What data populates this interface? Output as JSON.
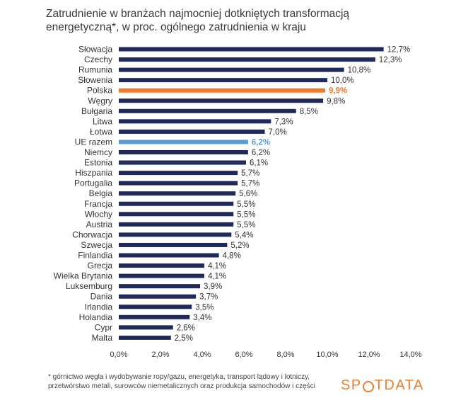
{
  "title": {
    "line1": "Zatrudnienie w branżach najmocniej dotkniętych transformacją",
    "line2": "energetyczną*, w proc. ogólnego zatrudnienia w kraju"
  },
  "footnote": {
    "line1": "* górnictwo węgla i wydobywanie ropy/gazu, energetyka, transport lądowy i lotniczy,",
    "line2": "przetwórstwo metali, surowców niemetalicznych oraz produkcja samochodów i części"
  },
  "logo": {
    "before": "SP",
    "after": "TDATA"
  },
  "colors": {
    "default": "#1f2a5a",
    "highlight": "#f07c2e",
    "eu": "#5b9bd5"
  },
  "chart_data": {
    "type": "bar",
    "orientation": "horizontal",
    "categories": [
      "Słowacja",
      "Czechy",
      "Rumunia",
      "Słowenia",
      "Polska",
      "Węgry",
      "Bułgaria",
      "Litwa",
      "Łotwa",
      "UE razem",
      "Niemcy",
      "Estonia",
      "Hiszpania",
      "Portugalia",
      "Belgia",
      "Francja",
      "Włochy",
      "Austria",
      "Chorwacja",
      "Szwecja",
      "Finlandia",
      "Grecja",
      "Wielka Brytania",
      "Luksemburg",
      "Dania",
      "Irlandia",
      "Holandia",
      "Cypr",
      "Malta"
    ],
    "values": [
      12.7,
      12.3,
      10.8,
      10.0,
      9.9,
      9.8,
      8.5,
      7.3,
      7.0,
      6.2,
      6.2,
      6.1,
      5.7,
      5.7,
      5.6,
      5.5,
      5.5,
      5.5,
      5.4,
      5.2,
      4.8,
      4.1,
      4.1,
      3.9,
      3.7,
      3.5,
      3.4,
      2.6,
      2.5
    ],
    "value_labels": [
      "12,7%",
      "12,3%",
      "10,8%",
      "10,0%",
      "9,9%",
      "9,8%",
      "8,5%",
      "7,3%",
      "7,0%",
      "6,2%",
      "6,2%",
      "6,1%",
      "5,7%",
      "5,7%",
      "5,6%",
      "5,5%",
      "5,5%",
      "5,5%",
      "5,4%",
      "5,2%",
      "4,8%",
      "4,1%",
      "4,1%",
      "3,9%",
      "3,7%",
      "3,5%",
      "3,4%",
      "2,6%",
      "2,5%"
    ],
    "highlight": {
      "Polska": "highlight",
      "UE razem": "eu"
    },
    "xlim": [
      0,
      14
    ],
    "xticks": [
      0,
      2,
      4,
      6,
      8,
      10,
      12,
      14
    ],
    "xtick_labels": [
      "0,0%",
      "2,0%",
      "4,0%",
      "6,0%",
      "8,0%",
      "10,0%",
      "12,0%",
      "14,0%"
    ],
    "xlabel": "",
    "ylabel": "",
    "grid": false,
    "legend": "none"
  }
}
